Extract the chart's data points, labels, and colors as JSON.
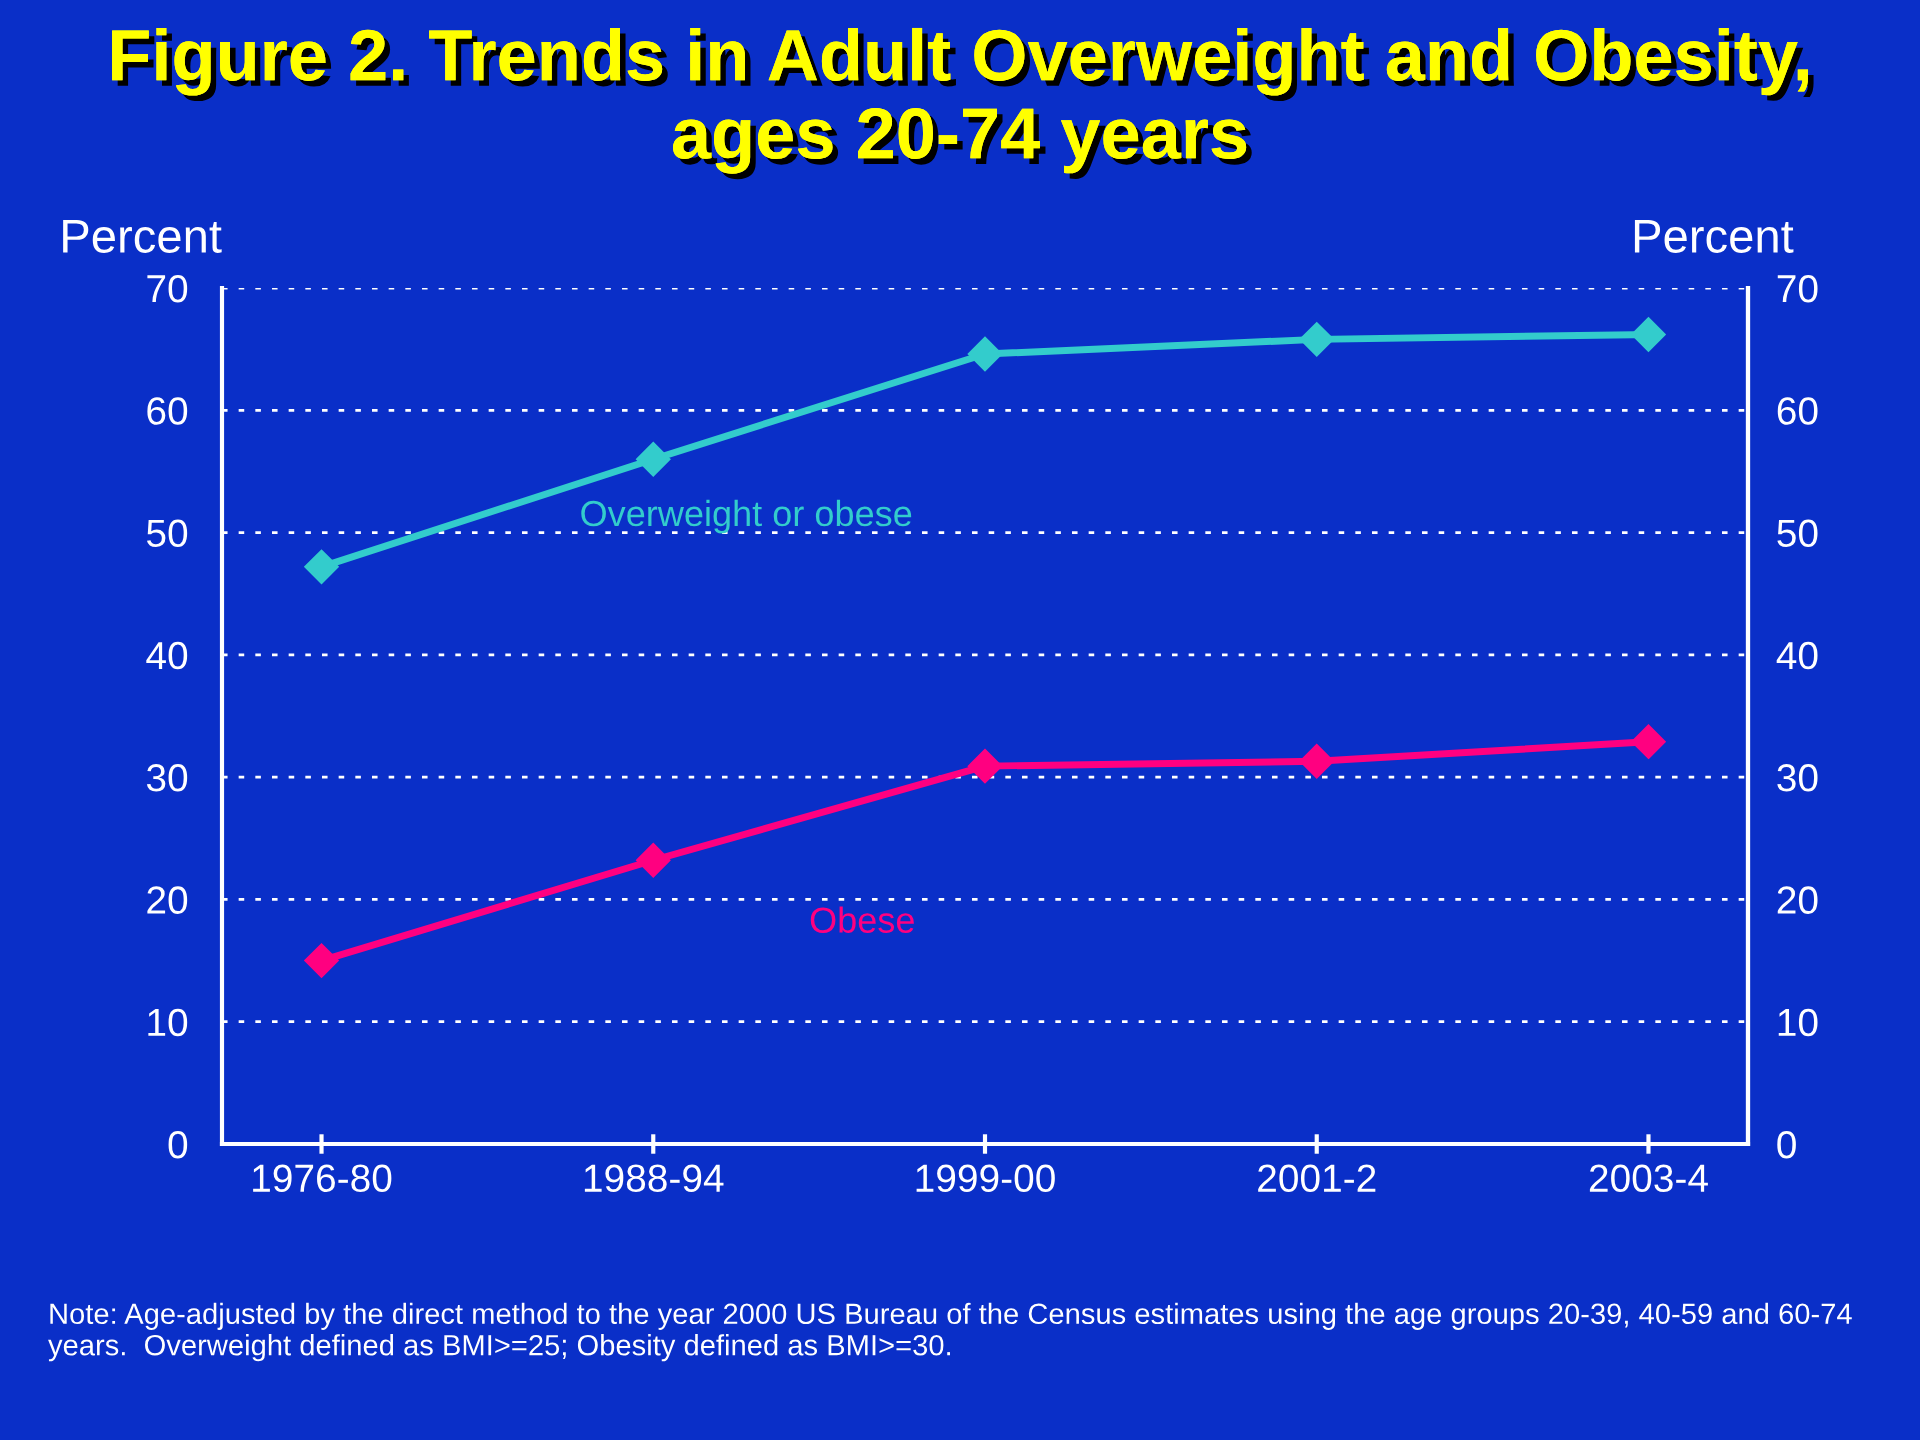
{
  "chart_data": {
    "type": "line",
    "title": "Figure 2. Trends in Adult Overweight and Obesity, ages 20-74 years",
    "ylabel": "Percent",
    "y2label": "Percent",
    "categories": [
      "1976-80",
      "1988-94",
      "1999-00",
      "2001-2",
      "2003-4"
    ],
    "series": [
      {
        "name": "Overweight or obese",
        "color": "#33cccc",
        "values": [
          47.2,
          56.0,
          64.6,
          65.8,
          66.2
        ]
      },
      {
        "name": "Obese",
        "color": "#ff0080",
        "values": [
          15.0,
          23.2,
          30.9,
          31.3,
          32.9
        ]
      }
    ],
    "ylim": [
      0,
      70
    ],
    "yticks": [
      0,
      10,
      20,
      30,
      40,
      50,
      60,
      70
    ],
    "y2lim": [
      0,
      70
    ],
    "y2ticks": [
      0,
      10,
      20,
      30,
      40,
      50,
      60,
      70
    ],
    "grid": "y",
    "marker": "diamond",
    "line_style": "solid",
    "legend": false,
    "annotations": [
      "Note: Age-adjusted by the direct method to the year 2000 US Bureau of the Census estimates using the age groups 20-39, 40-59 and 60-74 years.  Overweight defined as BMI>=25; Obesity defined as BMI>=30."
    ]
  }
}
